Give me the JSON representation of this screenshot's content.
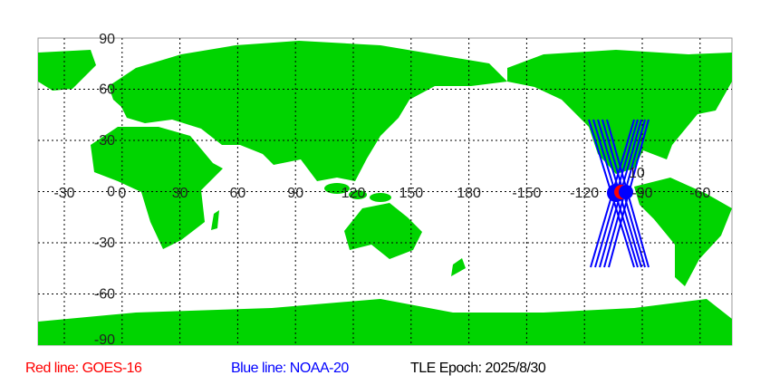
{
  "map": {
    "land_color": "#00d400",
    "grid_color": "#000000",
    "lon_labels": [
      "-30",
      "0",
      "30",
      "60",
      "90",
      "120",
      "150",
      "180",
      "-150",
      "-120",
      "-90",
      "-60"
    ],
    "lat_labels": [
      "90",
      "60",
      "30",
      "0",
      "-30",
      "-60",
      "-90"
    ],
    "marker_label": "10"
  },
  "legend": {
    "red": {
      "text": "Red line: GOES-16",
      "color": "#ff0000"
    },
    "blue": {
      "text": "Blue line: NOAA-20",
      "color": "#0000ff"
    },
    "epoch": {
      "text": "TLE Epoch: 2025/8/30",
      "color": "#000000"
    }
  }
}
